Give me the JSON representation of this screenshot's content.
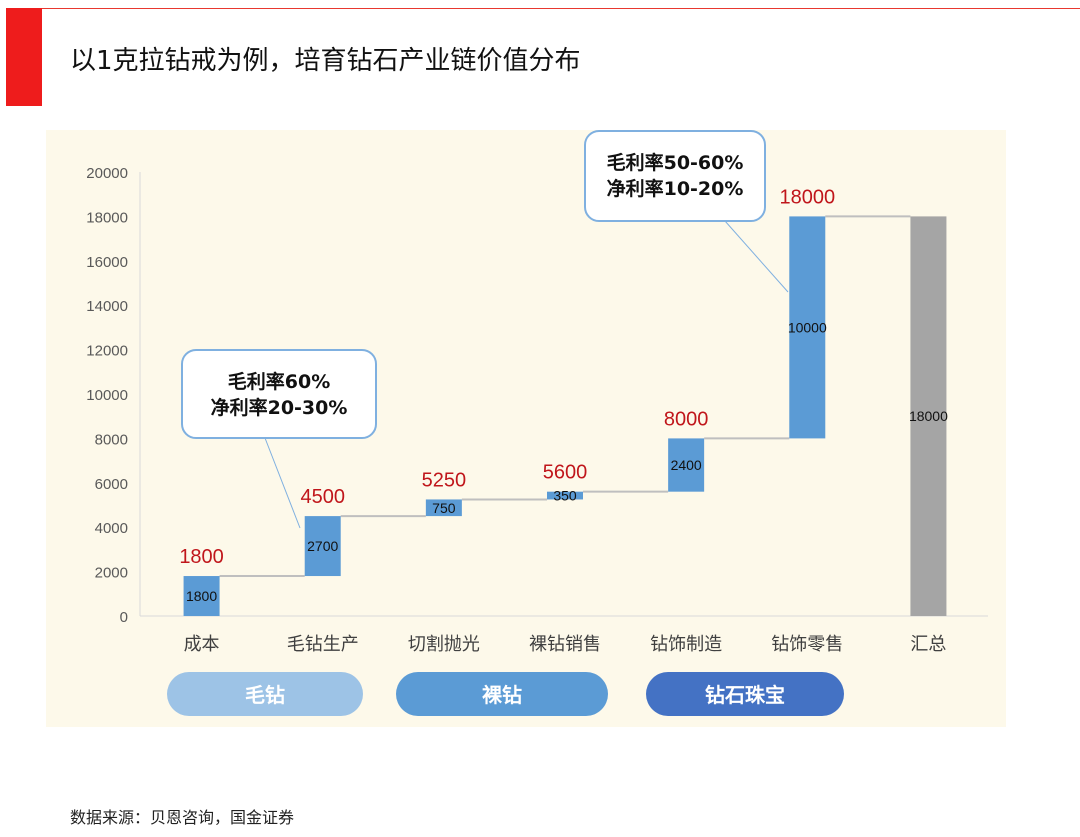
{
  "title": "以1克拉钻戒为例，培育钻石产业链价值分布",
  "source": "数据来源：贝恩咨询，国金证券",
  "chart_data": {
    "type": "bar",
    "subtype": "waterfall",
    "categories": [
      "成本",
      "毛钻生产",
      "切割抛光",
      "裸钻销售",
      "钻饰制造",
      "钻饰零售",
      "汇总"
    ],
    "increments": [
      1800,
      2700,
      750,
      350,
      2400,
      10000,
      18000
    ],
    "cumulative": [
      1800,
      4500,
      5250,
      5600,
      8000,
      18000,
      18000
    ],
    "total_label": "18000",
    "ylim": [
      0,
      20000
    ],
    "yticks": [
      0,
      2000,
      4000,
      6000,
      8000,
      10000,
      12000,
      14000,
      16000,
      18000,
      20000
    ],
    "colors": {
      "bar": "#5b9bd5",
      "total": "#a5a5a5",
      "label": "#c0161b",
      "connector": "#bfbfbf",
      "callout": "#7fb0e0"
    },
    "annotations": [
      {
        "lines": [
          "毛利率60%",
          "净利率20-30%"
        ],
        "points_to": "毛钻生产"
      },
      {
        "lines": [
          "毛利率50-60%",
          "净利率10-20%"
        ],
        "points_to": "钻饰零售"
      }
    ],
    "groups": [
      {
        "label": "毛钻",
        "color": "#9dc3e6"
      },
      {
        "label": "裸钻",
        "color": "#5b9bd5"
      },
      {
        "label": "钻石珠宝",
        "color": "#4472c4"
      }
    ]
  }
}
